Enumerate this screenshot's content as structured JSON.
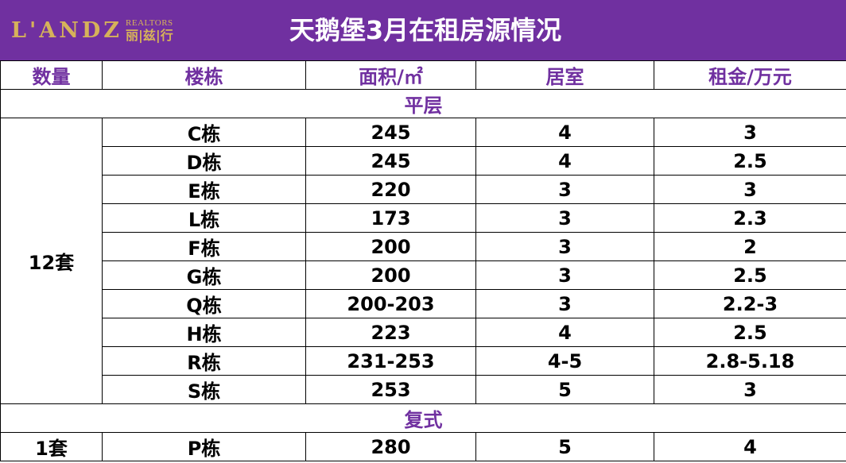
{
  "header": {
    "logo_mark": "L'ANDZ",
    "logo_sub": "REALTORS",
    "logo_cn": "丽|兹|行",
    "title": "天鹅堡3月在租房源情况"
  },
  "table": {
    "columns": [
      "数量",
      "楼栋",
      "面积/㎡",
      "居室",
      "租金/万元"
    ],
    "sections": [
      {
        "label": "平层",
        "count": "12套",
        "rows": [
          [
            "C栋",
            "245",
            "4",
            "3"
          ],
          [
            "D栋",
            "245",
            "4",
            "2.5"
          ],
          [
            "E栋",
            "220",
            "3",
            "3"
          ],
          [
            "L栋",
            "173",
            "3",
            "2.3"
          ],
          [
            "F栋",
            "200",
            "3",
            "2"
          ],
          [
            "G栋",
            "200",
            "3",
            "2.5"
          ],
          [
            "Q栋",
            "200-203",
            "3",
            "2.2-3"
          ],
          [
            "H栋",
            "223",
            "4",
            "2.5"
          ],
          [
            "R栋",
            "231-253",
            "4-5",
            "2.8-5.18"
          ],
          [
            "S栋",
            "253",
            "5",
            "3"
          ]
        ]
      },
      {
        "label": "复式",
        "count": "1套",
        "rows": [
          [
            "P栋",
            "280",
            "5",
            "4"
          ]
        ]
      }
    ]
  },
  "colors": {
    "brand_purple": "#7030a0",
    "logo_gold": "#d6b25a"
  }
}
